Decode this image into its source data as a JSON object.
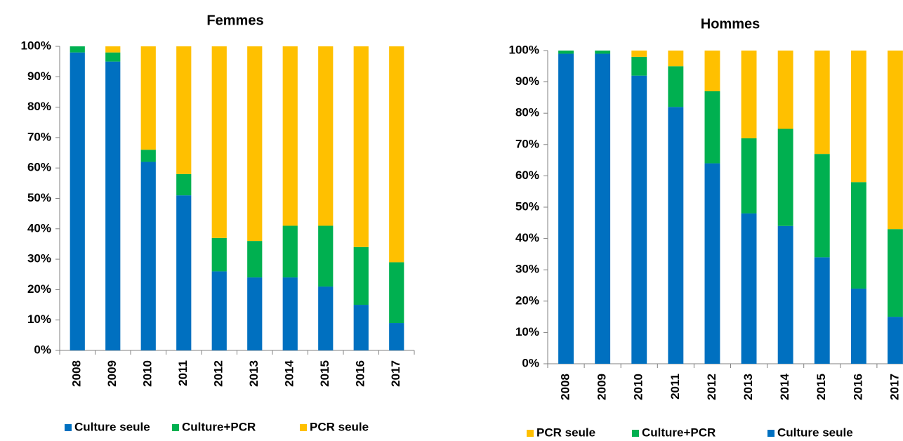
{
  "chart_data": [
    {
      "type": "bar",
      "stacked": true,
      "title": "Femmes",
      "categories": [
        "2008",
        "2009",
        "2010",
        "2011",
        "2012",
        "2013",
        "2014",
        "2015",
        "2016",
        "2017"
      ],
      "series": [
        {
          "name": "Culture seule",
          "color": "#0070c0",
          "values": [
            98,
            95,
            62,
            51,
            26,
            24,
            24,
            21,
            15,
            9
          ]
        },
        {
          "name": "Culture+PCR",
          "color": "#00b050",
          "values": [
            2,
            3,
            4,
            7,
            11,
            12,
            17,
            20,
            19,
            20
          ]
        },
        {
          "name": "PCR seule",
          "color": "#ffc000",
          "values": [
            0,
            2,
            34,
            42,
            63,
            64,
            59,
            59,
            66,
            71
          ]
        }
      ],
      "ylim": [
        0,
        100
      ],
      "yticks": [
        {
          "value": 0,
          "label": "0%"
        },
        {
          "value": 10,
          "label": "10%"
        },
        {
          "value": 20,
          "label": "20%"
        },
        {
          "value": 30,
          "label": "30%"
        },
        {
          "value": 40,
          "label": "40%"
        },
        {
          "value": 50,
          "label": "50%"
        },
        {
          "value": 60,
          "label": "60%"
        },
        {
          "value": 70,
          "label": "70%"
        },
        {
          "value": 80,
          "label": "80%"
        },
        {
          "value": 90,
          "label": "90%"
        },
        {
          "value": 100,
          "label": "100%"
        }
      ],
      "grid": false,
      "legend": "bottom",
      "legend_reversed": false
    },
    {
      "type": "bar",
      "stacked": true,
      "title": "Hommes",
      "categories": [
        "2008",
        "2009",
        "2010",
        "2011",
        "2012",
        "2013",
        "2014",
        "2015",
        "2016",
        "2017"
      ],
      "series": [
        {
          "name": "Culture seule",
          "color": "#0070c0",
          "values": [
            99,
            99,
            92,
            82,
            64,
            48,
            44,
            34,
            24,
            15
          ]
        },
        {
          "name": "Culture+PCR",
          "color": "#00b050",
          "values": [
            1,
            1,
            6,
            13,
            23,
            24,
            31,
            33,
            34,
            28
          ]
        },
        {
          "name": "PCR seule",
          "color": "#ffc000",
          "values": [
            0,
            0,
            2,
            5,
            13,
            28,
            25,
            33,
            42,
            57
          ]
        }
      ],
      "ylim": [
        0,
        100
      ],
      "yticks": [
        {
          "value": 0,
          "label": "0%"
        },
        {
          "value": 10,
          "label": "10%"
        },
        {
          "value": 20,
          "label": "20%"
        },
        {
          "value": 30,
          "label": "30%"
        },
        {
          "value": 40,
          "label": "40%"
        },
        {
          "value": 50,
          "label": "50%"
        },
        {
          "value": 60,
          "label": "60%"
        },
        {
          "value": 70,
          "label": "70%"
        },
        {
          "value": 80,
          "label": "80%"
        },
        {
          "value": 90,
          "label": "90%"
        },
        {
          "value": 100,
          "label": "100%"
        }
      ],
      "grid": false,
      "legend": "bottom",
      "legend_reversed": true
    }
  ]
}
